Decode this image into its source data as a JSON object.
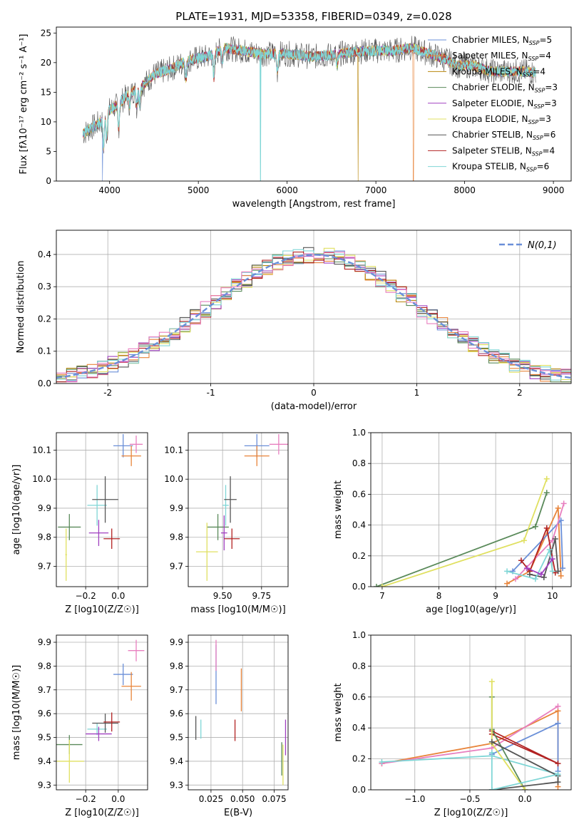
{
  "title": "PLATE=1931, MJD=53358, FIBERID=0349, z=0.028",
  "colors": [
    "#6a8fd8",
    "#e8843a",
    "#b8860b",
    "#5a8a5a",
    "#a040c0",
    "#e0e060",
    "#555555",
    "#b22222",
    "#7fd6d6"
  ],
  "extra_colors": {
    "pink": "#e87fbf",
    "navy": "#3b5bb3",
    "gaussian": "#6a8fd8"
  },
  "chart_data": [
    {
      "id": "spectrum",
      "type": "line",
      "xlabel": "wavelength [Angstrom, rest frame]",
      "ylabel": "Flux [fλ10⁻¹⁷ erg cm⁻² s⁻¹ A⁻¹]",
      "xlim": [
        3400,
        9200
      ],
      "ylim": [
        0,
        26
      ],
      "xticks": [
        4000,
        5000,
        6000,
        7000,
        8000,
        9000
      ],
      "yticks": [
        0,
        5,
        10,
        15,
        20,
        25
      ],
      "grid": false,
      "legend_position": "upper-right",
      "legend": [
        {
          "label": "Chabrier MILES, N",
          "sub": "SSP",
          "tail": "=5"
        },
        {
          "label": "Salpeter MILES, N",
          "sub": "SSP",
          "tail": "=4"
        },
        {
          "label": "Kroupa MILES, N",
          "sub": "SSP",
          "tail": "=4"
        },
        {
          "label": "Chabrier ELODIE, N",
          "sub": "SSP",
          "tail": "=3"
        },
        {
          "label": "Salpeter ELODIE, N",
          "sub": "SSP",
          "tail": "=3"
        },
        {
          "label": "Kroupa ELODIE, N",
          "sub": "SSP",
          "tail": "=3"
        },
        {
          "label": "Chabrier STELIB, N",
          "sub": "SSP",
          "tail": "=6"
        },
        {
          "label": "Salpeter STELIB, N",
          "sub": "SSP",
          "tail": "=4"
        },
        {
          "label": "Kroupa STELIB, N",
          "sub": "SSP",
          "tail": "=6"
        }
      ],
      "continuum": [
        [
          3700,
          8
        ],
        [
          3800,
          9
        ],
        [
          3900,
          10
        ],
        [
          4000,
          12
        ],
        [
          4100,
          13
        ],
        [
          4200,
          14.5
        ],
        [
          4300,
          15.5
        ],
        [
          4400,
          16.5
        ],
        [
          4500,
          18
        ],
        [
          4700,
          19
        ],
        [
          4900,
          20.5
        ],
        [
          5100,
          21
        ],
        [
          5300,
          22.5
        ],
        [
          5500,
          22
        ],
        [
          5700,
          21.5
        ],
        [
          6000,
          21.5
        ],
        [
          6300,
          21
        ],
        [
          6600,
          21.5
        ],
        [
          6900,
          22
        ],
        [
          7200,
          22
        ],
        [
          7400,
          22.5
        ],
        [
          7600,
          21.5
        ],
        [
          7800,
          20.5
        ],
        [
          7900,
          19.5
        ],
        [
          8100,
          19.5
        ],
        [
          8300,
          18.5
        ],
        [
          8500,
          18.5
        ],
        [
          8700,
          18.5
        ],
        [
          8900,
          18
        ]
      ],
      "absorption_lines": [
        [
          3933,
          5
        ],
        [
          3968,
          4
        ],
        [
          4102,
          4
        ],
        [
          4226,
          2
        ],
        [
          4305,
          3
        ],
        [
          4340,
          3
        ],
        [
          4861,
          3
        ],
        [
          5175,
          4
        ],
        [
          5270,
          2
        ],
        [
          5890,
          3
        ],
        [
          6563,
          2
        ]
      ]
    },
    {
      "id": "residuals",
      "type": "area",
      "xlabel": "(data-model)/error",
      "ylabel": "Normed distribution",
      "xlim": [
        -2.5,
        2.5
      ],
      "ylim": [
        0,
        0.475
      ],
      "xticks": [
        -2,
        -1,
        0,
        1,
        2
      ],
      "yticks": [
        0.0,
        0.1,
        0.2,
        0.3,
        0.4
      ],
      "grid": true,
      "legend_position": "upper-right",
      "gaussian_label": "N(0,1)",
      "bin_width": 0.1
    },
    {
      "id": "age_vs_Z",
      "type": "scatter",
      "xlabel": "Z [log10(Z/Z☉)]",
      "ylabel": "age  [log10(age/yr)]",
      "xlim": [
        -0.38,
        0.18
      ],
      "ylim": [
        9.63,
        10.16
      ],
      "xticks": [
        -0.2,
        0.0
      ],
      "xticklabels": [
        "−0.2",
        "0.0"
      ],
      "yticks": [
        9.7,
        9.8,
        9.9,
        10.0,
        10.1
      ],
      "grid": true,
      "points": [
        {
          "x": 0.03,
          "xe": 0.06,
          "y": 10.115,
          "ye": 0.04,
          "c": 0
        },
        {
          "x": 0.08,
          "xe": 0.06,
          "y": 10.08,
          "ye": 0.035,
          "c": 1
        },
        {
          "x": 0.11,
          "xe": 0.04,
          "y": 10.12,
          "ye": 0.03,
          "c": 9
        },
        {
          "x": -0.13,
          "xe": 0.06,
          "y": 9.91,
          "ye": 0.07,
          "c": 8
        },
        {
          "x": -0.08,
          "xe": 0.08,
          "y": 9.93,
          "ye": 0.08,
          "c": 6
        },
        {
          "x": -0.3,
          "xe": 0.07,
          "y": 9.835,
          "ye": 0.045,
          "c": 3
        },
        {
          "x": -0.12,
          "xe": 0.06,
          "y": 9.815,
          "ye": 0.045,
          "c": 4
        },
        {
          "x": -0.04,
          "xe": 0.05,
          "y": 9.795,
          "ye": 0.035,
          "c": 7
        },
        {
          "x": -0.32,
          "xe": 0.005,
          "y": 9.74,
          "ye": 0.09,
          "c": 5
        }
      ]
    },
    {
      "id": "age_vs_mass",
      "type": "scatter",
      "xlabel": "mass [log10(M/M☉)]",
      "ylabel": "",
      "xlim": [
        9.28,
        9.92
      ],
      "ylim": [
        9.63,
        10.16
      ],
      "xticks": [
        9.5,
        9.75
      ],
      "xticklabels": [
        "9.50",
        "9.75"
      ],
      "yticks": [
        9.7,
        9.8,
        9.9,
        10.0,
        10.1
      ],
      "grid": true,
      "points": [
        {
          "x": 9.72,
          "xe": 0.08,
          "y": 10.115,
          "ye": 0.04,
          "c": 0
        },
        {
          "x": 9.72,
          "xe": 0.08,
          "y": 10.08,
          "ye": 0.035,
          "c": 1
        },
        {
          "x": 9.86,
          "xe": 0.06,
          "y": 10.12,
          "ye": 0.035,
          "c": 9
        },
        {
          "x": 9.52,
          "xe": 0.02,
          "y": 9.91,
          "ye": 0.07,
          "c": 8
        },
        {
          "x": 9.55,
          "xe": 0.04,
          "y": 9.93,
          "ye": 0.08,
          "c": 6
        },
        {
          "x": 9.47,
          "xe": 0.07,
          "y": 9.835,
          "ye": 0.045,
          "c": 3
        },
        {
          "x": 9.51,
          "xe": 0.02,
          "y": 9.815,
          "ye": 0.06,
          "c": 4
        },
        {
          "x": 9.56,
          "xe": 0.05,
          "y": 9.795,
          "ye": 0.035,
          "c": 7
        },
        {
          "x": 9.4,
          "xe": 0.07,
          "y": 9.75,
          "ye": 0.1,
          "c": 5
        }
      ]
    },
    {
      "id": "weight_vs_age",
      "type": "line",
      "xlabel": "age  [log10(age/yr)]",
      "ylabel": "mass weight",
      "xlim": [
        6.8,
        10.33
      ],
      "ylim": [
        0,
        1
      ],
      "xticks": [
        7,
        8,
        9,
        10
      ],
      "yticks": [
        0.0,
        0.2,
        0.4,
        0.6,
        0.8,
        1.0
      ],
      "grid": true,
      "series": [
        {
          "c": 3,
          "x": [
            6.9,
            9.7,
            9.9
          ],
          "y": [
            0.0,
            0.39,
            0.61
          ]
        },
        {
          "c": 5,
          "x": [
            7.0,
            9.5,
            9.9
          ],
          "y": [
            0.0,
            0.3,
            0.7
          ]
        },
        {
          "c": 1,
          "x": [
            9.2,
            9.6,
            10.1,
            10.15
          ],
          "y": [
            0.02,
            0.1,
            0.51,
            0.07
          ]
        },
        {
          "c": 0,
          "x": [
            9.3,
            10.15,
            10.18
          ],
          "y": [
            0.1,
            0.43,
            0.12
          ]
        },
        {
          "c": 9,
          "x": [
            9.35,
            10.0,
            10.2
          ],
          "y": [
            0.05,
            0.3,
            0.54
          ]
        },
        {
          "c": 7,
          "x": [
            9.45,
            9.6,
            9.9,
            10.05
          ],
          "y": [
            0.17,
            0.1,
            0.38,
            0.09
          ]
        },
        {
          "c": 6,
          "x": [
            9.6,
            9.85,
            10.05,
            10.1
          ],
          "y": [
            0.08,
            0.06,
            0.31,
            0.1
          ]
        },
        {
          "c": 8,
          "x": [
            9.2,
            9.7,
            9.95,
            10.0
          ],
          "y": [
            0.1,
            0.05,
            0.24,
            0.1
          ]
        },
        {
          "c": 4,
          "x": [
            9.55,
            9.8,
            10.0
          ],
          "y": [
            0.12,
            0.08,
            0.18
          ]
        }
      ]
    },
    {
      "id": "mass_vs_Z",
      "type": "scatter",
      "xlabel": "Z [log10(Z/Z☉)]",
      "ylabel": "mass [log10(M/M☉)]",
      "xlim": [
        -0.38,
        0.18
      ],
      "ylim": [
        9.28,
        9.93
      ],
      "xticks": [
        -0.2,
        0.0
      ],
      "xticklabels": [
        "−0.2",
        "0.0"
      ],
      "yticks": [
        9.3,
        9.4,
        9.5,
        9.6,
        9.7,
        9.8,
        9.9
      ],
      "grid": true,
      "points": [
        {
          "x": 0.03,
          "xe": 0.06,
          "y": 9.765,
          "ye": 0.045,
          "c": 0
        },
        {
          "x": 0.08,
          "xe": 0.06,
          "y": 9.715,
          "ye": 0.06,
          "c": 1
        },
        {
          "x": 0.11,
          "xe": 0.05,
          "y": 9.865,
          "ye": 0.045,
          "c": 9
        },
        {
          "x": -0.13,
          "xe": 0.06,
          "y": 9.535,
          "ye": 0.025,
          "c": 8
        },
        {
          "x": -0.08,
          "xe": 0.08,
          "y": 9.56,
          "ye": 0.04,
          "c": 6
        },
        {
          "x": -0.3,
          "xe": 0.08,
          "y": 9.47,
          "ye": 0.04,
          "c": 3
        },
        {
          "x": -0.12,
          "xe": 0.08,
          "y": 9.515,
          "ye": 0.03,
          "c": 4
        },
        {
          "x": -0.04,
          "xe": 0.05,
          "y": 9.565,
          "ye": 0.04,
          "c": 7
        },
        {
          "x": -0.3,
          "xe": 0.09,
          "y": 9.4,
          "ye": 0.09,
          "c": 5
        }
      ]
    },
    {
      "id": "mass_vs_ebv",
      "type": "scatter",
      "xlabel": "E(B-V)",
      "ylabel": "",
      "xlim": [
        0.007,
        0.086
      ],
      "ylim": [
        9.28,
        9.93
      ],
      "xticks": [
        0.025,
        0.05,
        0.075
      ],
      "xticklabels": [
        "0.025",
        "0.050",
        "0.075"
      ],
      "yticks": [
        9.3,
        9.4,
        9.5,
        9.6,
        9.7,
        9.8,
        9.9
      ],
      "grid": true,
      "points": [
        {
          "x": 0.029,
          "xe": 0,
          "y": 9.765,
          "ye": 0.125,
          "c": 0
        },
        {
          "x": 0.049,
          "xe": 0,
          "y": 9.7,
          "ye": 0.09,
          "c": 1
        },
        {
          "x": 0.029,
          "xe": 0,
          "y": 9.845,
          "ye": 0.065,
          "c": 9
        },
        {
          "x": 0.017,
          "xe": 0,
          "y": 9.535,
          "ye": 0.04,
          "c": 8
        },
        {
          "x": 0.013,
          "xe": 0,
          "y": 9.54,
          "ye": 0.05,
          "c": 6
        },
        {
          "x": 0.084,
          "xe": 0,
          "y": 9.5,
          "ye": 0.075,
          "c": 4
        },
        {
          "x": 0.044,
          "xe": 0,
          "y": 9.53,
          "ye": 0.045,
          "c": 7
        },
        {
          "x": 0.082,
          "xe": 0,
          "y": 9.385,
          "ye": 0.085,
          "c": 5
        },
        {
          "x": 0.081,
          "xe": 0,
          "y": 9.41,
          "ye": 0.07,
          "c": 3
        }
      ]
    },
    {
      "id": "weight_vs_Z",
      "type": "line",
      "xlabel": "Z [log10(Z/Z☉)]",
      "ylabel": "mass weight",
      "xlim": [
        -1.4,
        0.42
      ],
      "ylim": [
        0,
        1
      ],
      "xticks": [
        -1.0,
        -0.5,
        0.0
      ],
      "xticklabels": [
        "−1.0",
        "−0.5",
        "0.0"
      ],
      "yticks": [
        0.0,
        0.2,
        0.4,
        0.6,
        0.8,
        1.0
      ],
      "grid": true,
      "series": [
        {
          "c": 1,
          "x": [
            -1.3,
            -0.3,
            0.3,
            0.3
          ],
          "y": [
            0.17,
            0.3,
            0.51,
            0.02
          ]
        },
        {
          "c": 9,
          "x": [
            -1.3,
            -0.3,
            0.3
          ],
          "y": [
            0.17,
            0.27,
            0.54
          ]
        },
        {
          "c": 8,
          "x": [
            -1.3,
            -0.3,
            0.3
          ],
          "y": [
            0.18,
            0.22,
            0.1
          ]
        },
        {
          "c": 0,
          "x": [
            -0.3,
            0.3,
            0.3
          ],
          "y": [
            0.23,
            0.43,
            0.12
          ]
        },
        {
          "c": 7,
          "x": [
            -0.3,
            0.3,
            -0.3
          ],
          "y": [
            0.38,
            0.17,
            0.36
          ]
        },
        {
          "c": 3,
          "x": [
            -0.3,
            -0.3,
            0.0
          ],
          "y": [
            0.6,
            0.39,
            0.0
          ]
        },
        {
          "c": 5,
          "x": [
            -0.3,
            -0.3,
            0.0
          ],
          "y": [
            0.7,
            0.3,
            0.0
          ]
        },
        {
          "c": 6,
          "x": [
            -0.3,
            0.3,
            0.3,
            -0.3
          ],
          "y": [
            0.31,
            0.09,
            0.05,
            0.0
          ]
        },
        {
          "c": 8,
          "x": [
            -0.3,
            -0.3,
            0.3
          ],
          "y": [
            0.24,
            0.0,
            0.1
          ]
        }
      ]
    }
  ]
}
